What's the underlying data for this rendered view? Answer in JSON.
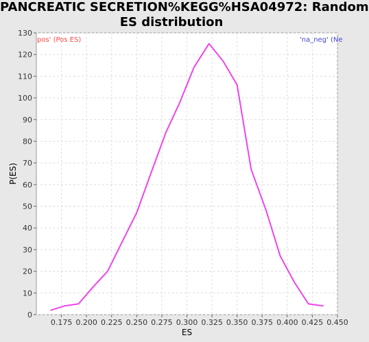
{
  "title_line1": "PANCREATIC SECRETION%KEGG%HSA04972: Random",
  "title_line2": "ES distribution",
  "chart_data": {
    "type": "line",
    "xlabel": "ES",
    "ylabel": "P(ES)",
    "xlim": [
      0.15,
      0.45
    ],
    "ylim": [
      0,
      130
    ],
    "grid": true,
    "x_ticks": [
      "0.175",
      "0.200",
      "0.225",
      "0.250",
      "0.275",
      "0.300",
      "0.325",
      "0.350",
      "0.375",
      "0.400",
      "0.425",
      "0.450"
    ],
    "x_tick_values": [
      0.175,
      0.2,
      0.225,
      0.25,
      0.275,
      0.3,
      0.325,
      0.35,
      0.375,
      0.4,
      0.425,
      0.45
    ],
    "y_ticks": [
      "0",
      "10",
      "20",
      "30",
      "40",
      "50",
      "60",
      "70",
      "80",
      "90",
      "100",
      "110",
      "120",
      "130"
    ],
    "y_tick_values": [
      0,
      10,
      20,
      30,
      40,
      50,
      60,
      70,
      80,
      90,
      100,
      110,
      120,
      130
    ],
    "legend_left": "pos' (Pos ES)",
    "legend_right": "'na_neg' (Ne",
    "legend_left_color": "#ff4444",
    "legend_right_color": "#4444cc",
    "line_color": "#ee44ee",
    "series": [
      {
        "values": [
          {
            "x": 0.164,
            "y": 2
          },
          {
            "x": 0.178,
            "y": 4
          },
          {
            "x": 0.192,
            "y": 5
          },
          {
            "x": 0.207,
            "y": 13
          },
          {
            "x": 0.221,
            "y": 20
          },
          {
            "x": 0.236,
            "y": 34
          },
          {
            "x": 0.25,
            "y": 47
          },
          {
            "x": 0.264,
            "y": 65
          },
          {
            "x": 0.279,
            "y": 84
          },
          {
            "x": 0.293,
            "y": 98
          },
          {
            "x": 0.307,
            "y": 114
          },
          {
            "x": 0.322,
            "y": 125
          },
          {
            "x": 0.336,
            "y": 117
          },
          {
            "x": 0.35,
            "y": 106
          },
          {
            "x": 0.364,
            "y": 67
          },
          {
            "x": 0.379,
            "y": 48
          },
          {
            "x": 0.393,
            "y": 27
          },
          {
            "x": 0.407,
            "y": 15
          },
          {
            "x": 0.421,
            "y": 5
          },
          {
            "x": 0.436,
            "y": 4
          }
        ]
      }
    ]
  }
}
